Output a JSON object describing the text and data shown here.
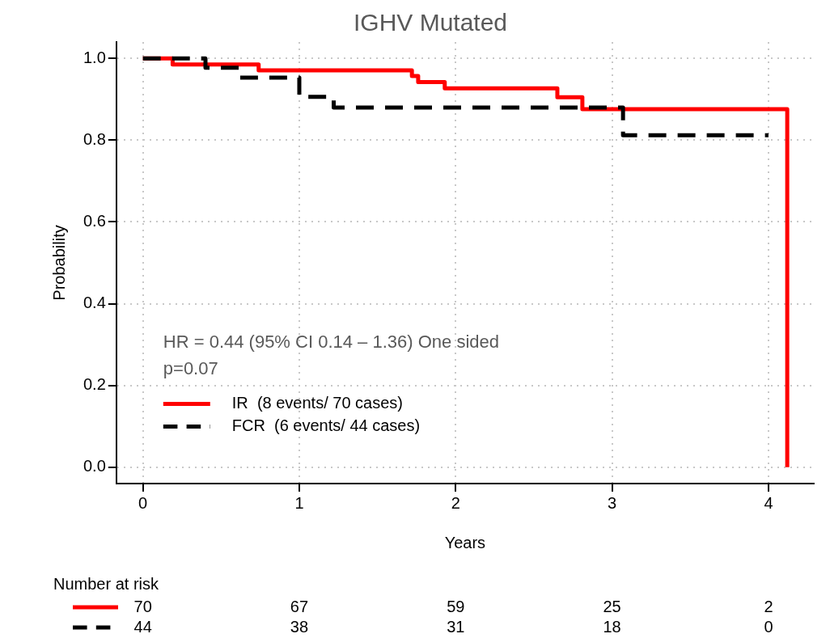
{
  "chart_data": {
    "type": "step",
    "title": "IGHV Mutated",
    "xlabel": "Years",
    "ylabel": "Probability",
    "xlim": [
      -0.17,
      4.29
    ],
    "xticks": [
      0,
      1,
      2,
      3,
      4
    ],
    "ylim": [
      -0.04,
      1.04
    ],
    "yticks": [
      {
        "value": 0,
        "label": "0.0"
      },
      0.2,
      0.4,
      0.6,
      0.8,
      {
        "value": 1,
        "label": "1.0"
      }
    ],
    "grid": true,
    "legend": "bottom left",
    "series": [
      {
        "name": "IR  (8 events/ 70 cases)",
        "color": "#ff0000",
        "line_style": "solid",
        "x": [
          0,
          0.19,
          0.74,
          1.72,
          1.76,
          1.93,
          2.65,
          2.81,
          4.12
        ],
        "values": [
          1,
          0.985,
          0.971,
          0.957,
          0.942,
          0.927,
          0.905,
          0.876,
          0
        ]
      },
      {
        "name": "FCR  (6 events/ 44 cases)",
        "color": "#000000",
        "line_style": "dashed",
        "x": [
          0,
          0.4,
          0.62,
          1.0,
          1.22,
          3.07,
          4.0
        ],
        "values": [
          1,
          0.977,
          0.953,
          0.906,
          0.88,
          0.812,
          0.812
        ]
      }
    ],
    "annotations": [
      "HR = 0.44 (95% CI 0.14 – 1.36) One sided",
      "p=0.07",
      "Number at risk",
      "70",
      "67",
      "59",
      "25",
      "2",
      "44",
      "38",
      "31",
      "18",
      "0"
    ]
  }
}
